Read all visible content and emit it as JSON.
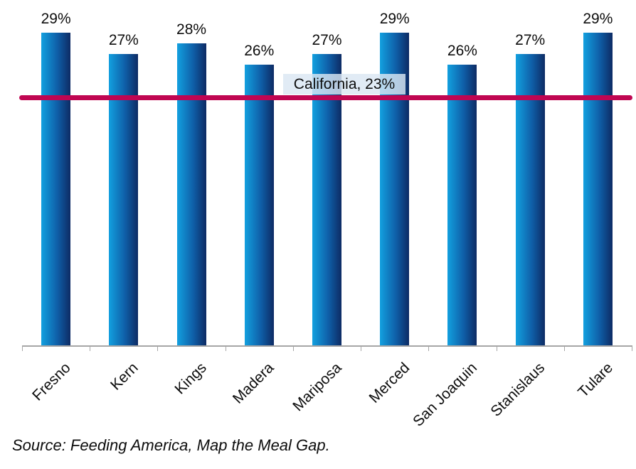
{
  "chart_data": {
    "type": "bar",
    "title": "",
    "xlabel": "",
    "ylabel": "",
    "categories": [
      "Fresno",
      "Kern",
      "Kings",
      "Madera",
      "Mariposa",
      "Merced",
      "San Joaquin",
      "Stanislaus",
      "Tulare"
    ],
    "values": [
      29,
      27,
      28,
      26,
      27,
      29,
      26,
      27,
      29
    ],
    "value_labels": [
      "29%",
      "27%",
      "28%",
      "26%",
      "27%",
      "29%",
      "26%",
      "27%",
      "29%"
    ],
    "ylim": [
      0,
      32
    ],
    "grid": false,
    "legend_position": "none",
    "reference_line": {
      "label": "California, 23%",
      "value": 23
    }
  },
  "source_note": "Source: Feeding America, Map the Meal Gap.",
  "colors": {
    "bar_gradient_start": "#12A0DF",
    "bar_gradient_mid": "#0F5FA8",
    "bar_gradient_end": "#0D2B64",
    "reference_line": "#C00652",
    "reference_label_bg": "rgba(219,230,243,0.82)",
    "axis": "#A6A6A6",
    "text": "#0d0d0d"
  }
}
